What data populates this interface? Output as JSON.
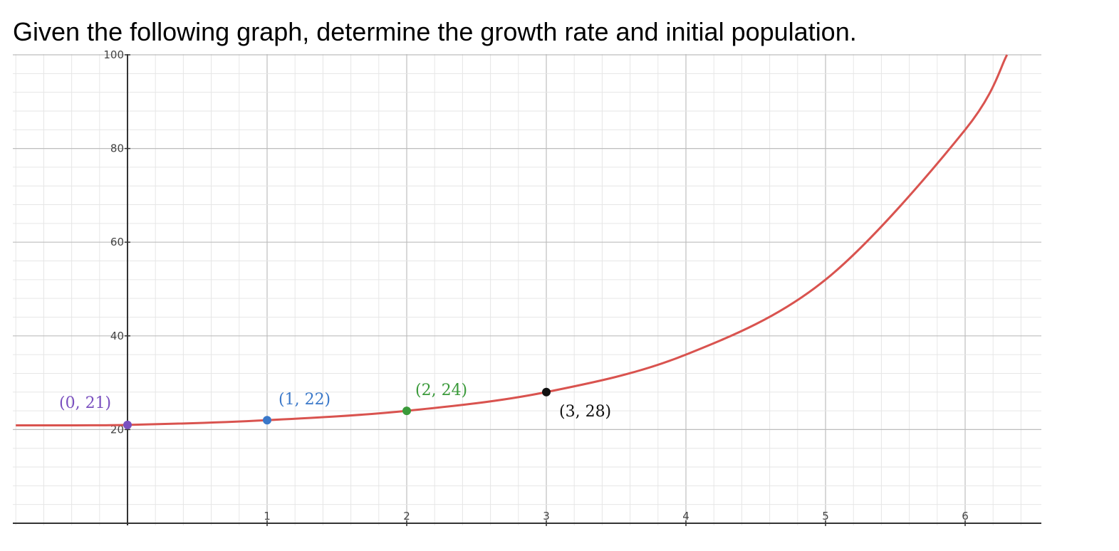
{
  "question": "Given the following graph, determine the growth rate and initial population.",
  "chart_data": {
    "type": "line",
    "title": "",
    "xlabel": "",
    "ylabel": "",
    "xlim": [
      -0.82,
      6.55
    ],
    "ylim": [
      -1,
      100
    ],
    "x_ticks": [
      {
        "value": 1,
        "label": "1"
      },
      {
        "value": 2,
        "label": "2"
      },
      {
        "value": 3,
        "label": "3"
      },
      {
        "value": 4,
        "label": "4"
      },
      {
        "value": 5,
        "label": "5"
      },
      {
        "value": 6,
        "label": "6"
      }
    ],
    "y_ticks": [
      {
        "value": 20,
        "label": "20"
      },
      {
        "value": 40,
        "label": "40"
      },
      {
        "value": 60,
        "label": "60"
      },
      {
        "value": 80,
        "label": "80"
      },
      {
        "value": 100,
        "label": "100"
      }
    ],
    "grid": true,
    "curve": {
      "color": "#d9534f",
      "x": [
        -0.8,
        0,
        1,
        2,
        3,
        4,
        5,
        6,
        6.3
      ],
      "y": [
        20.9,
        21,
        22,
        24,
        28,
        36,
        52,
        84,
        100
      ]
    },
    "points": [
      {
        "x": 0,
        "y": 21,
        "label": "(0, 21)",
        "color": "#7a4fbf"
      },
      {
        "x": 1,
        "y": 22,
        "label": "(1, 22)",
        "color": "#3a78c9"
      },
      {
        "x": 2,
        "y": 24,
        "label": "(2, 24)",
        "color": "#3a9a3a"
      },
      {
        "x": 3,
        "y": 28,
        "label": "(3, 28)",
        "color": "#111111"
      }
    ]
  }
}
